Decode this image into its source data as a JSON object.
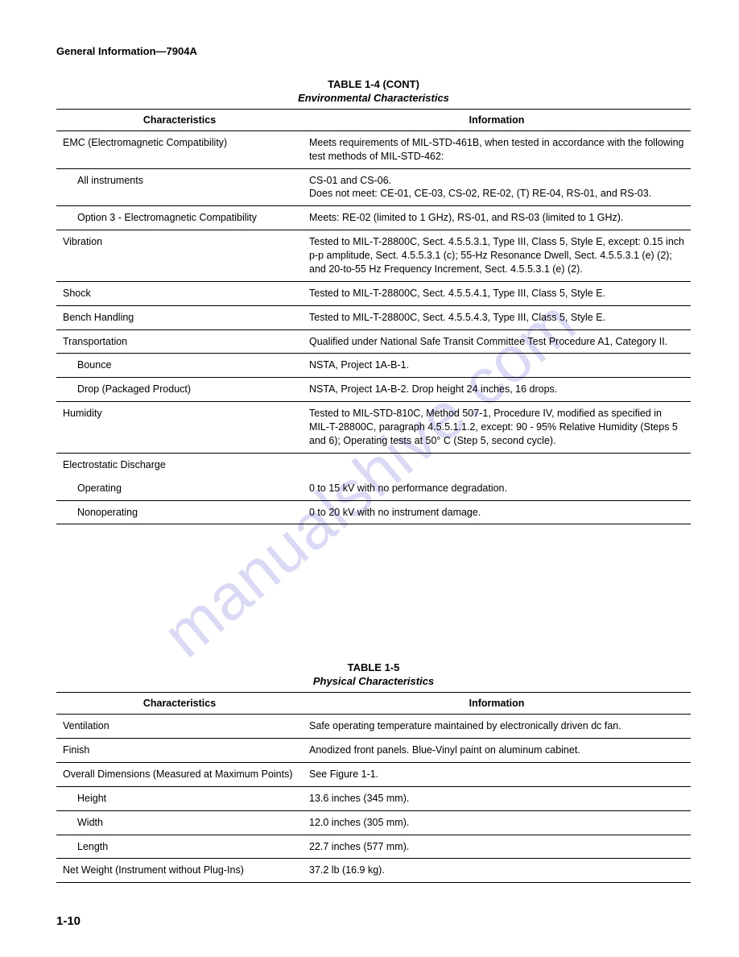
{
  "header": "General Information—7904A",
  "watermark": "manualshive.com",
  "footer": "1-10",
  "table1": {
    "title": "TABLE 1-4 (CONT)",
    "subtitle": "Environmental Characteristics",
    "col1": "Characteristics",
    "col2": "Information",
    "rows": [
      {
        "c": "EMC (Electromagnetic Compatibility)",
        "i": "Meets requirements of MIL-STD-461B, when tested in accordance with the following test methods of MIL-STD-462:",
        "indent": 0
      },
      {
        "c": "All instruments",
        "i": "CS-01 and CS-06.\nDoes not meet: CE-01, CE-03, CS-02, RE-02, (T) RE-04, RS-01, and RS-03.",
        "indent": 1
      },
      {
        "c": "Option 3 - Electromagnetic Compatibility",
        "i": "Meets: RE-02 (limited to 1 GHz), RS-01, and RS-03 (limited to 1 GHz).",
        "indent": 1
      },
      {
        "c": "Vibration",
        "i": "Tested to MIL-T-28800C, Sect. 4.5.5.3.1, Type III, Class 5, Style E, except: 0.15 inch p-p amplitude, Sect. 4.5.5.3.1 (c); 55-Hz Resonance Dwell, Sect. 4.5.5.3.1 (e) (2); and 20-to-55 Hz Frequency Increment, Sect. 4.5.5.3.1 (e) (2).",
        "indent": 0
      },
      {
        "c": "Shock",
        "i": "Tested to MIL-T-28800C, Sect. 4.5.5.4.1, Type III, Class 5, Style E.",
        "indent": 0
      },
      {
        "c": "Bench Handling",
        "i": "Tested to MIL-T-28800C, Sect. 4.5.5.4.3, Type III, Class 5, Style E.",
        "indent": 0
      },
      {
        "c": "Transportation",
        "i": "Qualified under National Safe Transit Committee Test Procedure A1, Category II.",
        "indent": 0
      },
      {
        "c": "Bounce",
        "i": "NSTA, Project 1A-B-1.",
        "indent": 1
      },
      {
        "c": "Drop (Packaged Product)",
        "i": "NSTA, Project 1A-B-2. Drop height 24 inches, 16 drops.",
        "indent": 1
      },
      {
        "c": "Humidity",
        "i": "Tested to MIL-STD-810C, Method 507-1, Procedure IV, modified as specified in MIL-T-28800C, paragraph 4.5.5.1.1.2, except: 90 - 95% Relative Humidity (Steps 5 and 6); Operating tests at 50° C (Step 5, second cycle).",
        "indent": 0
      },
      {
        "c": "Electrostatic Discharge",
        "i": "",
        "indent": 0,
        "noborder": true
      },
      {
        "c": "Operating",
        "i": "0 to 15 kV with no performance degradation.",
        "indent": 1
      },
      {
        "c": "Nonoperating",
        "i": "0 to 20 kV with no instrument damage.",
        "indent": 1
      }
    ]
  },
  "table2": {
    "title": "TABLE 1-5",
    "subtitle": "Physical Characteristics",
    "col1": "Characteristics",
    "col2": "Information",
    "rows": [
      {
        "c": "Ventilation",
        "i": "Safe operating temperature maintained by electronically driven dc fan.",
        "indent": 0
      },
      {
        "c": "Finish",
        "i": "Anodized front panels. Blue-Vinyl paint on aluminum cabinet.",
        "indent": 0
      },
      {
        "c": "Overall Dimensions (Measured at Maximum Points)",
        "i": "See Figure 1-1.",
        "indent": 0
      },
      {
        "c": "Height",
        "i": "13.6 inches (345 mm).",
        "indent": 1
      },
      {
        "c": "Width",
        "i": "12.0 inches (305 mm).",
        "indent": 1
      },
      {
        "c": "Length",
        "i": "22.7 inches (577 mm).",
        "indent": 1
      },
      {
        "c": "Net Weight (Instrument without Plug-Ins)",
        "i": "37.2 lb (16.9 kg).",
        "indent": 0
      }
    ]
  }
}
